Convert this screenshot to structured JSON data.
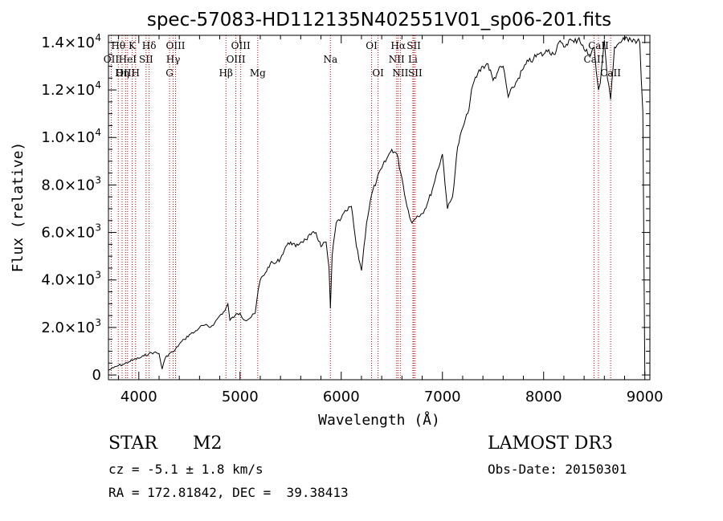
{
  "chart_data": {
    "type": "line",
    "title": "spec-57083-HD112135N402551V01_sp06-201.fits",
    "xlabel": "Wavelength (Å)",
    "ylabel": "Flux (relative)",
    "xlim": [
      3700,
      9050
    ],
    "ylim": [
      -200,
      14300
    ],
    "xticks": [
      {
        "value": 4000,
        "label": "4000"
      },
      {
        "value": 5000,
        "label": "5000"
      },
      {
        "value": 6000,
        "label": "6000"
      },
      {
        "value": 7000,
        "label": "7000"
      },
      {
        "value": 8000,
        "label": "8000"
      },
      {
        "value": 9000,
        "label": "9000"
      }
    ],
    "yticks": [
      {
        "value": 0,
        "mant": "0",
        "exp": ""
      },
      {
        "value": 2000,
        "mant": "2.0×10",
        "exp": "3"
      },
      {
        "value": 4000,
        "mant": "4.0×10",
        "exp": "3"
      },
      {
        "value": 6000,
        "mant": "6.0×10",
        "exp": "3"
      },
      {
        "value": 8000,
        "mant": "8.0×10",
        "exp": "3"
      },
      {
        "value": 10000,
        "mant": "1.0×10",
        "exp": "4"
      },
      {
        "value": 12000,
        "mant": "1.2×10",
        "exp": "4"
      },
      {
        "value": 14000,
        "mant": "1.4×10",
        "exp": "4"
      }
    ],
    "series": [
      {
        "name": "flux",
        "x": [
          3700,
          3750,
          3800,
          3850,
          3900,
          3950,
          4000,
          4050,
          4100,
          4150,
          4200,
          4230,
          4260,
          4300,
          4350,
          4400,
          4450,
          4500,
          4550,
          4600,
          4650,
          4700,
          4750,
          4800,
          4850,
          4880,
          4900,
          4950,
          5000,
          5050,
          5100,
          5150,
          5180,
          5200,
          5250,
          5300,
          5350,
          5400,
          5450,
          5500,
          5550,
          5600,
          5650,
          5700,
          5750,
          5800,
          5850,
          5880,
          5893,
          5910,
          5950,
          6000,
          6050,
          6100,
          6150,
          6200,
          6250,
          6300,
          6350,
          6400,
          6450,
          6500,
          6550,
          6600,
          6650,
          6700,
          6750,
          6800,
          6850,
          6900,
          6950,
          7000,
          7050,
          7100,
          7150,
          7200,
          7250,
          7300,
          7350,
          7400,
          7450,
          7500,
          7550,
          7600,
          7650,
          7700,
          7750,
          7800,
          7850,
          7900,
          7950,
          8000,
          8050,
          8100,
          8150,
          8200,
          8250,
          8300,
          8350,
          8400,
          8450,
          8500,
          8520,
          8542,
          8560,
          8600,
          8630,
          8662,
          8700,
          8750,
          8800,
          8850,
          8900,
          8950,
          8980,
          9000
        ],
        "y": [
          200,
          300,
          400,
          450,
          550,
          650,
          700,
          800,
          900,
          950,
          900,
          250,
          700,
          900,
          1000,
          1300,
          1500,
          1700,
          1800,
          2000,
          2100,
          2000,
          2200,
          2500,
          2700,
          3000,
          2300,
          2500,
          2600,
          2300,
          2400,
          2600,
          3600,
          4000,
          4300,
          4700,
          4700,
          4900,
          5400,
          5600,
          5400,
          5600,
          5700,
          5900,
          6000,
          5400,
          5600,
          4500,
          2800,
          5000,
          6400,
          6600,
          6900,
          7100,
          5400,
          4400,
          6400,
          7600,
          8200,
          8700,
          9100,
          9500,
          9300,
          8300,
          7100,
          6400,
          6700,
          6800,
          7200,
          7800,
          8600,
          9300,
          7000,
          7500,
          9600,
          10400,
          11000,
          12200,
          12700,
          13000,
          13100,
          12400,
          12800,
          13000,
          11700,
          12100,
          12500,
          12900,
          13200,
          13300,
          13500,
          13500,
          13700,
          13500,
          14000,
          13800,
          14100,
          14000,
          14200,
          13700,
          13500,
          13800,
          12800,
          12000,
          12300,
          14100,
          12500,
          11600,
          13800,
          14000,
          14100,
          14200,
          14100,
          14000,
          11100,
          0
        ]
      }
    ],
    "spectral_lines": [
      {
        "label": "Hθ",
        "wave": 3797,
        "row": 0
      },
      {
        "label": "OII",
        "wave": 3727,
        "row": 1
      },
      {
        "label": "OIII",
        "wave": 3869,
        "row": 2
      },
      {
        "label": "K",
        "wave": 3934,
        "row": 0
      },
      {
        "label": "Hη",
        "wave": 3835,
        "row": 2
      },
      {
        "label": "HeI",
        "wave": 3889,
        "row": 1
      },
      {
        "label": "H",
        "wave": 3968,
        "row": 2
      },
      {
        "label": "SII",
        "wave": 4072,
        "row": 1
      },
      {
        "label": "Hδ",
        "wave": 4102,
        "row": 0
      },
      {
        "label": "OIII",
        "wave": 4363,
        "row": 0
      },
      {
        "label": "Hγ",
        "wave": 4340,
        "row": 1
      },
      {
        "label": "G",
        "wave": 4304,
        "row": 2
      },
      {
        "label": "Hβ",
        "wave": 4861,
        "row": 2
      },
      {
        "label": "OIII",
        "wave": 4959,
        "row": 1
      },
      {
        "label": "OIII",
        "wave": 5007,
        "row": 0
      },
      {
        "label": "Mg",
        "wave": 5175,
        "row": 2
      },
      {
        "label": "Na",
        "wave": 5893,
        "row": 1
      },
      {
        "label": "OI",
        "wave": 6300,
        "row": 0
      },
      {
        "label": "OI",
        "wave": 6364,
        "row": 2
      },
      {
        "label": "NII",
        "wave": 6548,
        "row": 1
      },
      {
        "label": "Hα",
        "wave": 6563,
        "row": 0
      },
      {
        "label": "NII",
        "wave": 6584,
        "row": 2
      },
      {
        "label": "Li",
        "wave": 6708,
        "row": 1
      },
      {
        "label": "SII",
        "wave": 6717,
        "row": 0
      },
      {
        "label": "SII",
        "wave": 6731,
        "row": 2
      },
      {
        "label": "CaII",
        "wave": 8498,
        "row": 1
      },
      {
        "label": "CaII",
        "wave": 8542,
        "row": 0
      },
      {
        "label": "CaII",
        "wave": 8662,
        "row": 2
      }
    ]
  },
  "info": {
    "class": "STAR",
    "subclass": "M2",
    "survey": "LAMOST DR3",
    "cz": "cz = -5.1 ± 1.8 km/s",
    "obs_date": "Obs-Date: 20150301",
    "coords": "RA = 172.81842, DEC =  39.38413"
  }
}
